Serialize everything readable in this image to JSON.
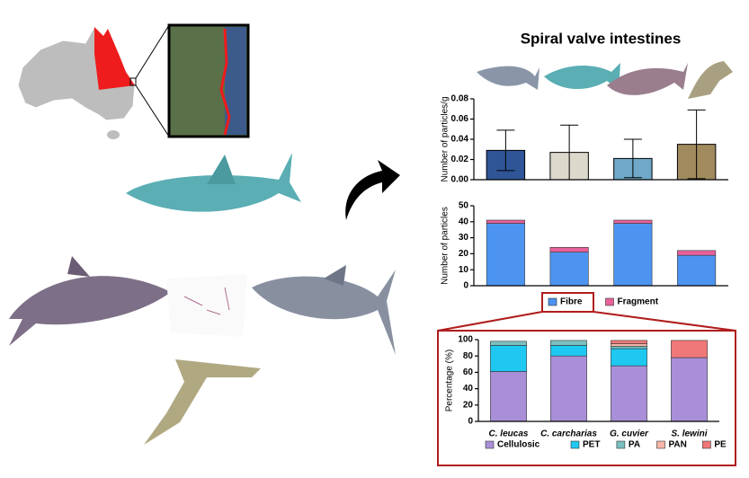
{
  "chart_data": [
    {
      "type": "bar",
      "title": "Spiral valve intestines",
      "ylabel": "Number of particles/g",
      "values": [
        0.029,
        0.027,
        0.021,
        0.035
      ],
      "errors": [
        0.02,
        0.027,
        0.019,
        0.034
      ],
      "colors": [
        "#2f5597",
        "#dcd9cc",
        "#6fa8c8",
        "#a08a5e"
      ],
      "ylim": [
        0,
        0.08
      ],
      "yticks": [
        {
          "value": 0,
          "label": "0.00"
        },
        0.02,
        0.04,
        0.06,
        0.08
      ]
    },
    {
      "type": "stacked-bar",
      "ylabel": "Number of particles",
      "series": [
        {
          "name": "Fibre",
          "color": "#4d94f0",
          "values": [
            39,
            21,
            39,
            19
          ]
        },
        {
          "name": "Fragment",
          "color": "#e8609a",
          "values": [
            2,
            3,
            2,
            3
          ]
        }
      ],
      "ylim": [
        0,
        50
      ],
      "yticks": [
        0,
        10,
        20,
        30,
        40,
        50
      ],
      "legend": "bottom"
    },
    {
      "type": "stacked-bar",
      "ylabel": "Percentage (%)",
      "categories": [
        "C. leucas",
        "C. carcharias",
        "G. cuvier",
        "S. lewini"
      ],
      "series": [
        {
          "name": "Cellulosic",
          "color": "#a98fd8",
          "values": [
            61,
            80,
            68,
            78
          ]
        },
        {
          "name": "PET",
          "color": "#1ec8f0",
          "values": [
            32,
            13,
            21,
            0
          ]
        },
        {
          "name": "PA",
          "color": "#7bbfbf",
          "values": [
            5,
            6,
            3,
            0
          ]
        },
        {
          "name": "PAN",
          "color": "#f7b6a8",
          "values": [
            0,
            0,
            3,
            0
          ]
        },
        {
          "name": "PE",
          "color": "#f07878",
          "values": [
            0,
            0,
            4,
            21
          ]
        }
      ],
      "ylim": [
        0,
        100
      ],
      "yticks": [
        0,
        20,
        40,
        60,
        80,
        100
      ],
      "legend": "bottom"
    }
  ]
}
